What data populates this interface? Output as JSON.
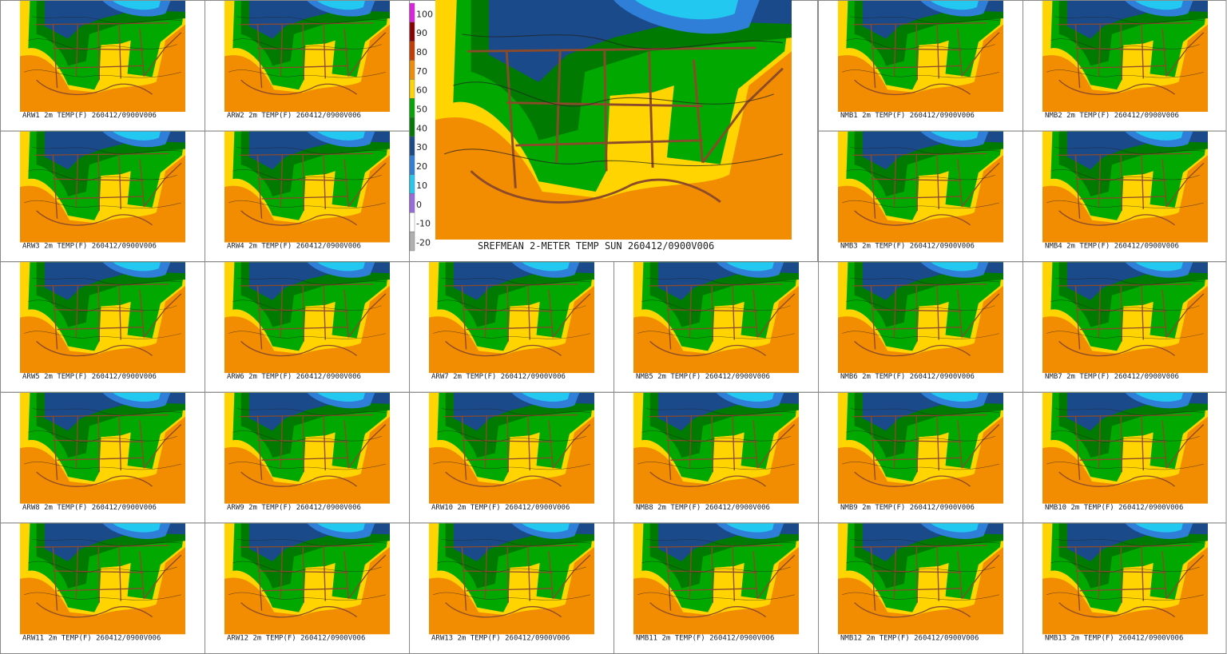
{
  "colorbar": {
    "labels": [
      "100",
      "90",
      "80",
      "70",
      "60",
      "50",
      "40",
      "30",
      "20",
      "10",
      "0",
      "-10",
      "-20"
    ],
    "colors": [
      "#e020e0",
      "#8b0000",
      "#c83c00",
      "#f28c00",
      "#ffd400",
      "#00a800",
      "#007a00",
      "#1a4a8a",
      "#2f7fd8",
      "#22c8f0",
      "#9a6ae0",
      "#ffffff",
      "#b0b0b0"
    ]
  },
  "main_panel": {
    "caption": "SREFMEAN 2-METER TEMP SUN 260412/0900V006"
  },
  "panels": [
    {
      "caption": "ARW1 2m TEMP(F) 260412/0900V006"
    },
    {
      "caption": "ARW2 2m TEMP(F) 260412/0900V006"
    },
    {
      "caption": "NMB1 2m TEMP(F) 260412/0900V006"
    },
    {
      "caption": "NMB2 2m TEMP(F) 260412/0900V006"
    },
    {
      "caption": "ARW3 2m TEMP(F) 260412/0900V006"
    },
    {
      "caption": "ARW4 2m TEMP(F) 260412/0900V006"
    },
    {
      "caption": "NMB3 2m TEMP(F) 260412/0900V006"
    },
    {
      "caption": "NMB4 2m TEMP(F) 260412/0900V006"
    },
    {
      "caption": "ARW5 2m TEMP(F) 260412/0900V006"
    },
    {
      "caption": "ARW6 2m TEMP(F) 260412/0900V006"
    },
    {
      "caption": "ARW7 2m TEMP(F) 260412/0900V006"
    },
    {
      "caption": "NMB5 2m TEMP(F) 260412/0900V006"
    },
    {
      "caption": "NMB6 2m TEMP(F) 260412/0900V006"
    },
    {
      "caption": "NMB7 2m TEMP(F) 260412/0900V006"
    },
    {
      "caption": "ARW8 2m TEMP(F) 260412/0900V006"
    },
    {
      "caption": "ARW9 2m TEMP(F) 260412/0900V006"
    },
    {
      "caption": "ARW10 2m TEMP(F) 260412/0900V006"
    },
    {
      "caption": "NMB8 2m TEMP(F) 260412/0900V006"
    },
    {
      "caption": "NMB9 2m TEMP(F) 260412/0900V006"
    },
    {
      "caption": "NMB10 2m TEMP(F) 260412/0900V006"
    },
    {
      "caption": "ARW11 2m TEMP(F) 260412/0900V006"
    },
    {
      "caption": "ARW12 2m TEMP(F) 260412/0900V006"
    },
    {
      "caption": "ARW13 2m TEMP(F) 260412/0900V006"
    },
    {
      "caption": "NMB11 2m TEMP(F) 260412/0900V006"
    },
    {
      "caption": "NMB12 2m TEMP(F) 260412/0900V006"
    },
    {
      "caption": "NMB13 2m TEMP(F) 260412/0900V006"
    }
  ]
}
